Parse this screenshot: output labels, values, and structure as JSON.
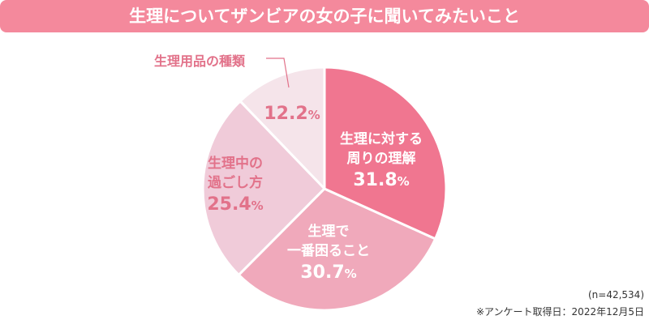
{
  "chart_data": {
    "type": "pie",
    "title": "生理についてザンビアの女の子に聞いてみたいこと",
    "slices": [
      {
        "label_lines": [
          "生理に対する",
          "周りの理解"
        ],
        "value": 31.8,
        "color": "#f07690",
        "text": "w"
      },
      {
        "label_lines": [
          "生理で",
          "一番困ること"
        ],
        "value": 30.7,
        "color": "#f0a9bb",
        "text": "w"
      },
      {
        "label_lines": [
          "生理中の",
          "過ごし方"
        ],
        "value": 25.4,
        "color": "#f0cbd9",
        "text": "p"
      },
      {
        "label_lines": [
          "生理用品の種類"
        ],
        "value": 12.2,
        "color": "#f5e4ea",
        "text": "p"
      }
    ],
    "unit": "%",
    "sample": "(n=42,534)",
    "survey_date": "※アンケート取得日：2022年12月5日"
  }
}
